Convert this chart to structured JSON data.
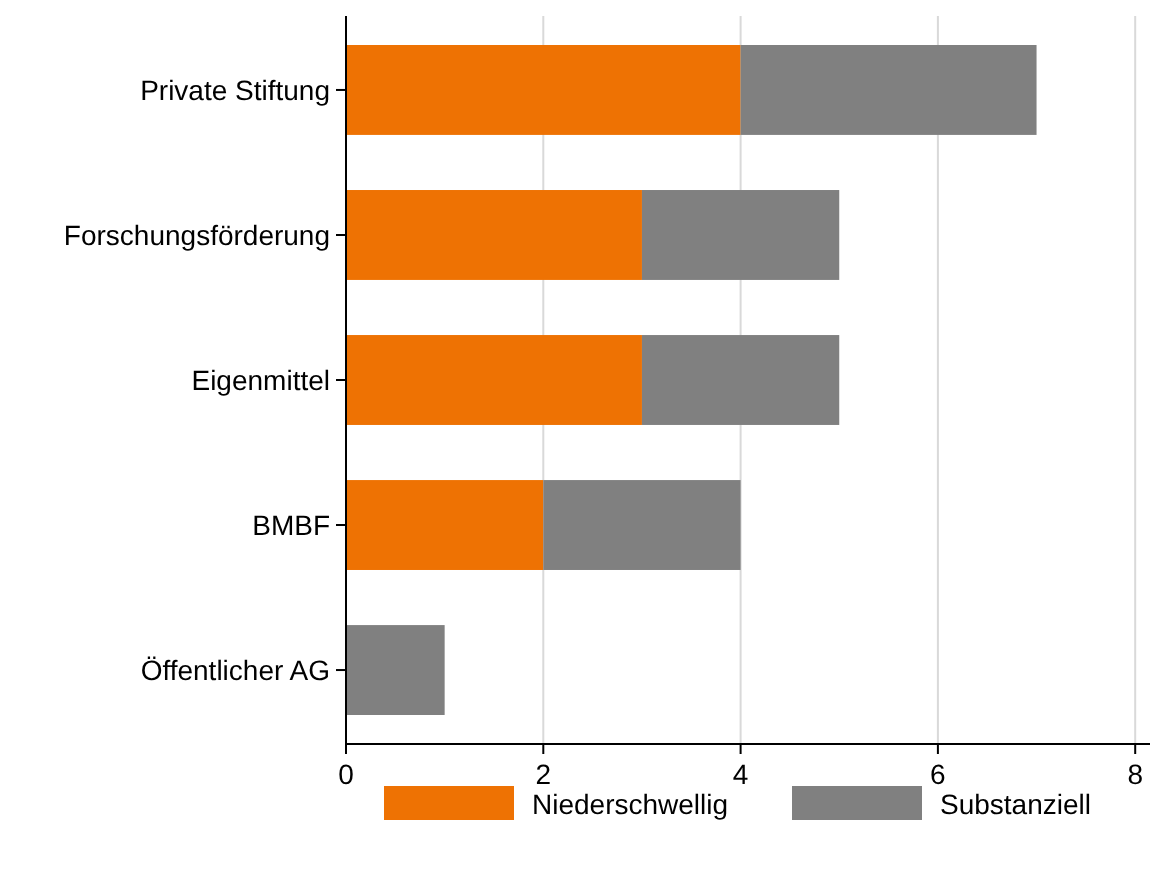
{
  "chart_data": {
    "type": "bar",
    "orientation": "horizontal",
    "stacked": true,
    "categories": [
      "Private Stiftung",
      "Forschungsförderung",
      "Eigenmittel",
      "BMBF",
      "Öffentlicher AG"
    ],
    "series": [
      {
        "name": "Niederschwellig",
        "color": "#ee7203",
        "values": [
          4,
          3,
          3,
          2,
          0
        ]
      },
      {
        "name": "Substanziell",
        "color": "#808080",
        "values": [
          3,
          2,
          2,
          2,
          1
        ]
      }
    ],
    "xlim": [
      0,
      8.15
    ],
    "xticks": [
      0,
      2,
      4,
      6,
      8
    ],
    "grid": "x",
    "legend": "bottom"
  }
}
